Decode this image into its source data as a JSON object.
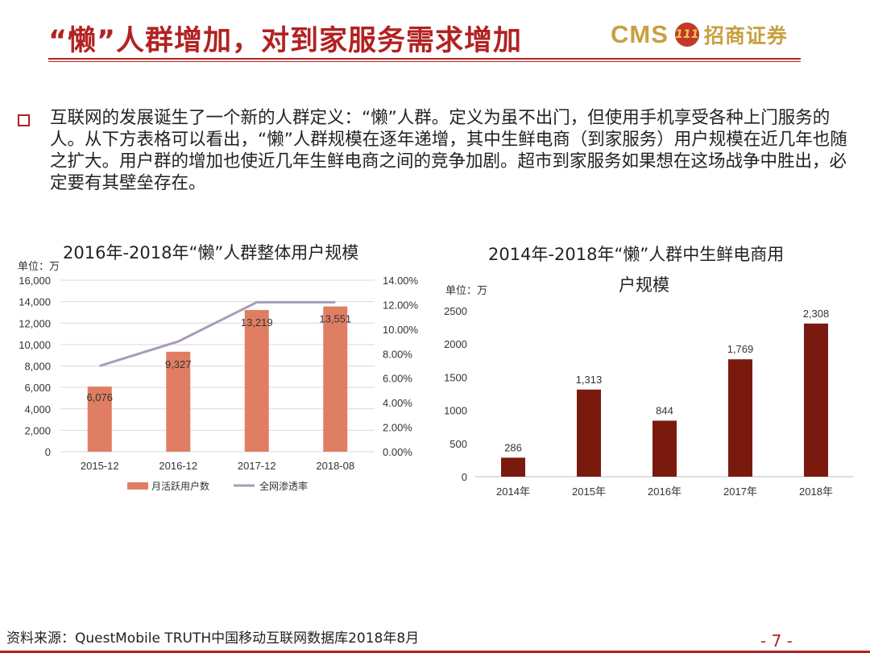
{
  "header": {
    "title": "“懒”人群增加，对到家服务需求增加",
    "logo_cms": "CMS",
    "logo_mark": "111",
    "logo_name": "招商证券"
  },
  "body_text": "互联网的发展诞生了一个新的人群定义：“懒”人群。定义为虽不出门，但使用手机享受各种上门服务的人。从下方表格可以看出，“懒”人群规模在逐年递增，其中生鲜电商（到家服务）用户规模在近几年也随之扩大。用户群的增加也使近几年生鲜电商之间的竞争加剧。超市到家服务如果想在这场战争中胜出，必定要有其壁垒存在。",
  "colors": {
    "accent": "#b22222",
    "bar1": "#e07e63",
    "line1": "#a79cb8",
    "bar2": "#7a1a0f"
  },
  "chart_data": [
    {
      "type": "bar",
      "title": "2016年-2018年“懒”人群整体用户规模",
      "unit_label": "单位：万",
      "categories": [
        "2015-12",
        "2016-12",
        "2017-12",
        "2018-08"
      ],
      "series": [
        {
          "name": "月活跃用户数",
          "type": "bar",
          "axis": "left",
          "values": [
            6076,
            9327,
            13219,
            13551
          ]
        },
        {
          "name": "全网渗透率",
          "type": "line",
          "axis": "right",
          "values": [
            7.0,
            9.0,
            12.2,
            12.2
          ]
        }
      ],
      "ylim": [
        0,
        16000
      ],
      "yticks": [
        "0",
        "2,000",
        "4,000",
        "6,000",
        "8,000",
        "10,000",
        "12,000",
        "14,000",
        "16,000"
      ],
      "y2lim": [
        0,
        14
      ],
      "y2ticks": [
        "0.00%",
        "2.00%",
        "4.00%",
        "6.00%",
        "8.00%",
        "10.00%",
        "12.00%",
        "14.00%"
      ],
      "data_labels": [
        "6,076",
        "9,327",
        "13,219",
        "13,551"
      ],
      "legend": "bottom"
    },
    {
      "type": "bar",
      "title_line1": "2014年-2018年“懒”人群中生鲜电商用",
      "title_line2": "户规模",
      "unit_label": "单位：万",
      "categories": [
        "2014年",
        "2015年",
        "2016年",
        "2017年",
        "2018年"
      ],
      "values": [
        286,
        1313,
        844,
        1769,
        2308
      ],
      "ylim": [
        0,
        2500
      ],
      "yticks": [
        "0",
        "500",
        "1000",
        "1500",
        "2000",
        "2500"
      ],
      "data_labels": [
        "286",
        "1,313",
        "844",
        "1,769",
        "2,308"
      ]
    }
  ],
  "footer": {
    "source": "资料来源：QuestMobile TRUTH中国移动互联网数据库2018年8月",
    "page": "- 7 -"
  }
}
